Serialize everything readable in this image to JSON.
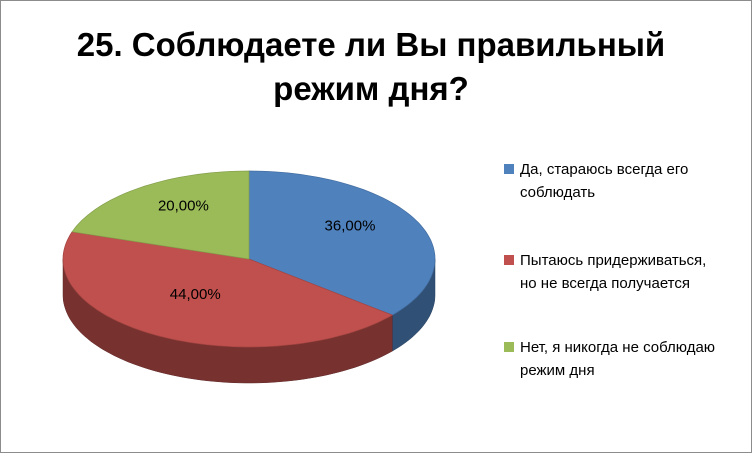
{
  "chart_data": {
    "type": "pie",
    "title": "25. Соблюдаете ли Вы правильный режим дня?",
    "categories": [
      "Да, стараюсь всегда его соблюдать",
      "Пытаюсь придерживаться, но не всегда получается",
      "Нет, я никогда не соблюдаю режим дня"
    ],
    "values": [
      36,
      44,
      20
    ],
    "value_labels": [
      "36,00%",
      "44,00%",
      "20,00%"
    ],
    "colors": [
      "#4f81bd",
      "#c0504d",
      "#9bbb59"
    ],
    "legend": "right"
  }
}
